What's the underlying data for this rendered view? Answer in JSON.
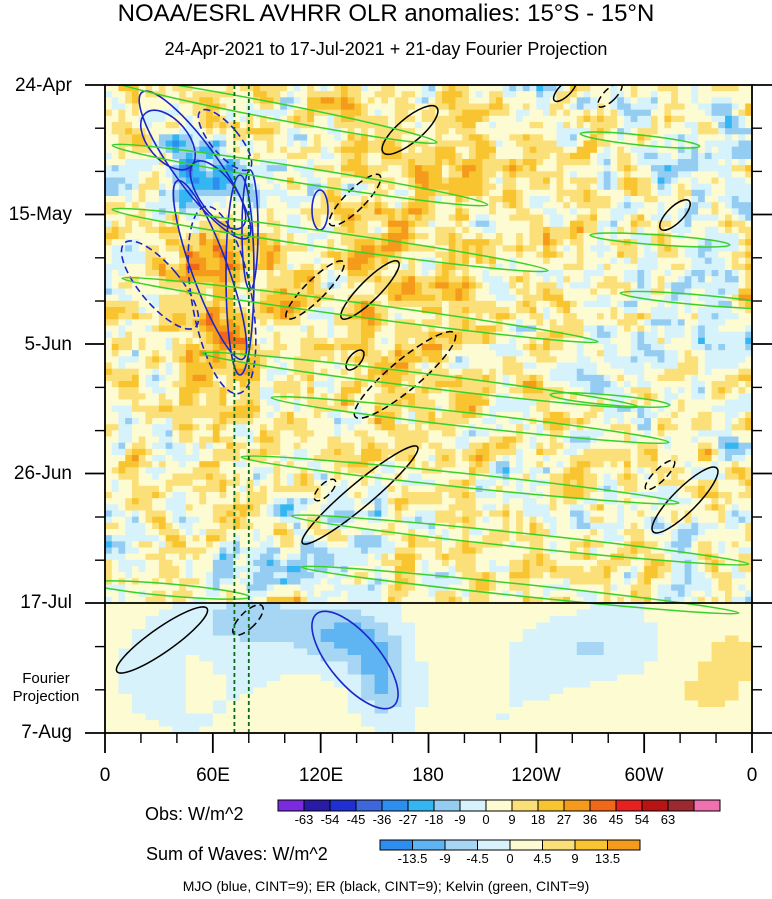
{
  "chart_data": {
    "type": "heatmap",
    "title": "NOAA/ESRL AVHRR OLR anomalies: 15°S - 15°N",
    "subtitle": "24-Apr-2021 to 17-Jul-2021 + 21-day Fourier Projection",
    "y_ticks": [
      "24-Apr",
      "15-May",
      "5-Jun",
      "26-Jun",
      "17-Jul",
      "7-Aug"
    ],
    "projection_label": "Fourier\nProjection",
    "x_ticks": [
      "0",
      "60E",
      "120E",
      "180",
      "120W",
      "60W",
      "0"
    ],
    "x_range_deg_east": [
      0,
      360
    ],
    "y_range": [
      "24-Apr-2021",
      "7-Aug-2021"
    ],
    "obs_colorbar": {
      "title": "Obs: W/m^2",
      "levels": [
        "-63",
        "-54",
        "-45",
        "-36",
        "-27",
        "-18",
        "-9",
        "0",
        "9",
        "18",
        "27",
        "36",
        "45",
        "54",
        "63"
      ],
      "colors": [
        "#7a2be0",
        "#2a1aa8",
        "#1f2fd2",
        "#3e66dd",
        "#2e8ef0",
        "#33b6f2",
        "#95ccf2",
        "#d6f2fb",
        "#fdfbd2",
        "#fbe07a",
        "#f8c430",
        "#f59a1a",
        "#f06818",
        "#e82020",
        "#b81414",
        "#9c2830",
        "#f070b0"
      ]
    },
    "waves_colorbar": {
      "title": "Sum of Waves: W/m^2",
      "levels": [
        "-13.5",
        "-9",
        "-4.5",
        "0",
        "4.5",
        "9",
        "13.5"
      ],
      "colors": [
        "#2e8ef0",
        "#5fb4f2",
        "#a6d6f4",
        "#d8f2fb",
        "#fdfbd2",
        "#fbe07a",
        "#f8c430",
        "#f59a1a"
      ]
    },
    "contours": "MJO (blue, CINT=9); ER (black, CINT=9); Kelvin (green, CINT=9)",
    "reference_lines_deg": [
      72,
      80
    ],
    "series_colors": {
      "MJO": "#1b26c8",
      "ER": "#000000",
      "Kelvin": "#39d02a"
    }
  }
}
